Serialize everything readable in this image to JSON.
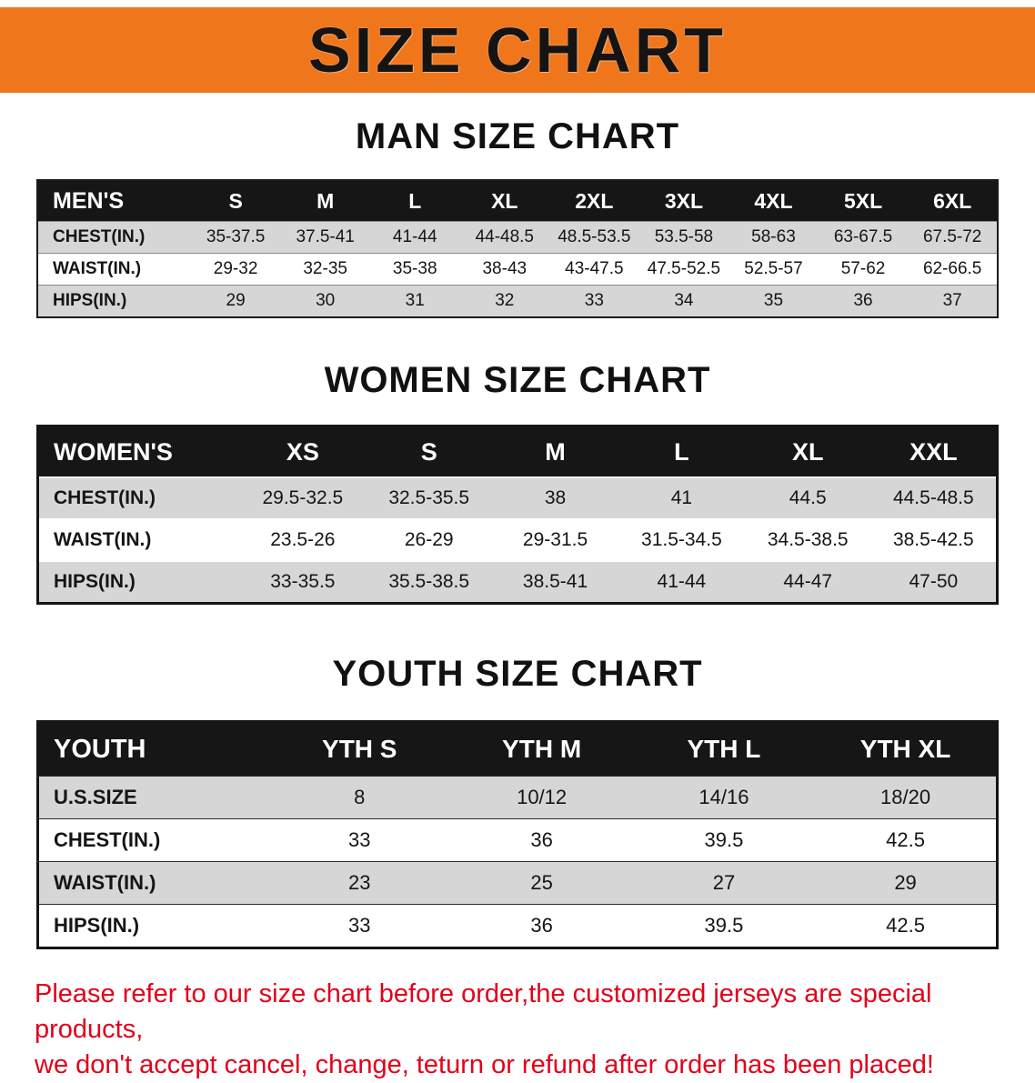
{
  "banner": {
    "title": "SIZE CHART",
    "bg_color": "#f0761c",
    "text_color": "#161412"
  },
  "sections": {
    "men": {
      "heading": "MAN SIZE CHART",
      "table": {
        "header": [
          "MEN'S",
          "S",
          "M",
          "L",
          "XL",
          "2XL",
          "3XL",
          "4XL",
          "5XL",
          "6XL"
        ],
        "rows": [
          [
            "CHEST(IN.)",
            "35-37.5",
            "37.5-41",
            "41-44",
            "44-48.5",
            "48.5-53.5",
            "53.5-58",
            "58-63",
            "63-67.5",
            "67.5-72"
          ],
          [
            "WAIST(IN.)",
            "29-32",
            "32-35",
            "35-38",
            "38-43",
            "43-47.5",
            "47.5-52.5",
            "52.5-57",
            "57-62",
            "62-66.5"
          ],
          [
            "HIPS(IN.)",
            "29",
            "30",
            "31",
            "32",
            "33",
            "34",
            "35",
            "36",
            "37"
          ]
        ]
      }
    },
    "women": {
      "heading": "WOMEN SIZE CHART",
      "table": {
        "header": [
          "WOMEN'S",
          "XS",
          "S",
          "M",
          "L",
          "XL",
          "XXL"
        ],
        "rows": [
          [
            "CHEST(IN.)",
            "29.5-32.5",
            "32.5-35.5",
            "38",
            "41",
            "44.5",
            "44.5-48.5"
          ],
          [
            "WAIST(IN.)",
            "23.5-26",
            "26-29",
            "29-31.5",
            "31.5-34.5",
            "34.5-38.5",
            "38.5-42.5"
          ],
          [
            "HIPS(IN.)",
            "33-35.5",
            "35.5-38.5",
            "38.5-41",
            "41-44",
            "44-47",
            "47-50"
          ]
        ]
      }
    },
    "youth": {
      "heading": "YOUTH SIZE CHART",
      "table": {
        "header": [
          "YOUTH",
          "YTH S",
          "YTH M",
          "YTH L",
          "YTH XL"
        ],
        "rows": [
          [
            "U.S.SIZE",
            "8",
            "10/12",
            "14/16",
            "18/20"
          ],
          [
            "CHEST(IN.)",
            "33",
            "36",
            "39.5",
            "42.5"
          ],
          [
            "WAIST(IN.)",
            "23",
            "25",
            "27",
            "29"
          ],
          [
            "HIPS(IN.)",
            "33",
            "36",
            "39.5",
            "42.5"
          ]
        ]
      }
    }
  },
  "note": {
    "line1": "Please refer to our size chart before order,the customized jerseys are special products,",
    "line2": "we don't accept cancel, change, teturn or refund after order has been placed!",
    "color": "#e2001a"
  }
}
